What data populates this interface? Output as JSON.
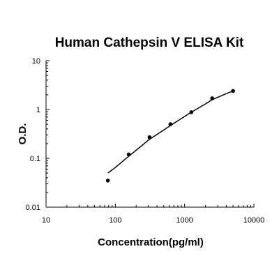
{
  "chart_data": {
    "type": "scatter",
    "title": "Human Cathepsin V ELISA Kit",
    "xlabel": "Concentration(pg/ml)",
    "ylabel": "O.D.",
    "x_scale": "log",
    "y_scale": "log",
    "xlim": [
      10,
      10000
    ],
    "ylim": [
      0.01,
      10
    ],
    "x_ticks": [
      10,
      100,
      1000,
      10000
    ],
    "x_tick_labels": [
      "10",
      "100",
      "1000",
      "10000"
    ],
    "y_ticks": [
      0.01,
      0.1,
      1,
      10
    ],
    "y_tick_labels": [
      "0.01",
      "0.1",
      "1",
      "10"
    ],
    "grid": false,
    "points": {
      "x": [
        78,
        156,
        312,
        625,
        1250,
        2500,
        5000
      ],
      "y": [
        0.035,
        0.12,
        0.27,
        0.5,
        0.88,
        1.7,
        2.4
      ]
    },
    "fit_curve": {
      "x": [
        78,
        100,
        156,
        250,
        312,
        500,
        625,
        1000,
        1250,
        2000,
        2500,
        3500,
        5000
      ],
      "y": [
        0.05,
        0.065,
        0.11,
        0.19,
        0.245,
        0.38,
        0.47,
        0.72,
        0.88,
        1.3,
        1.58,
        1.95,
        2.4
      ]
    },
    "colors": {
      "points": "#000000",
      "curve": "#000000",
      "axes": "#000000"
    }
  }
}
